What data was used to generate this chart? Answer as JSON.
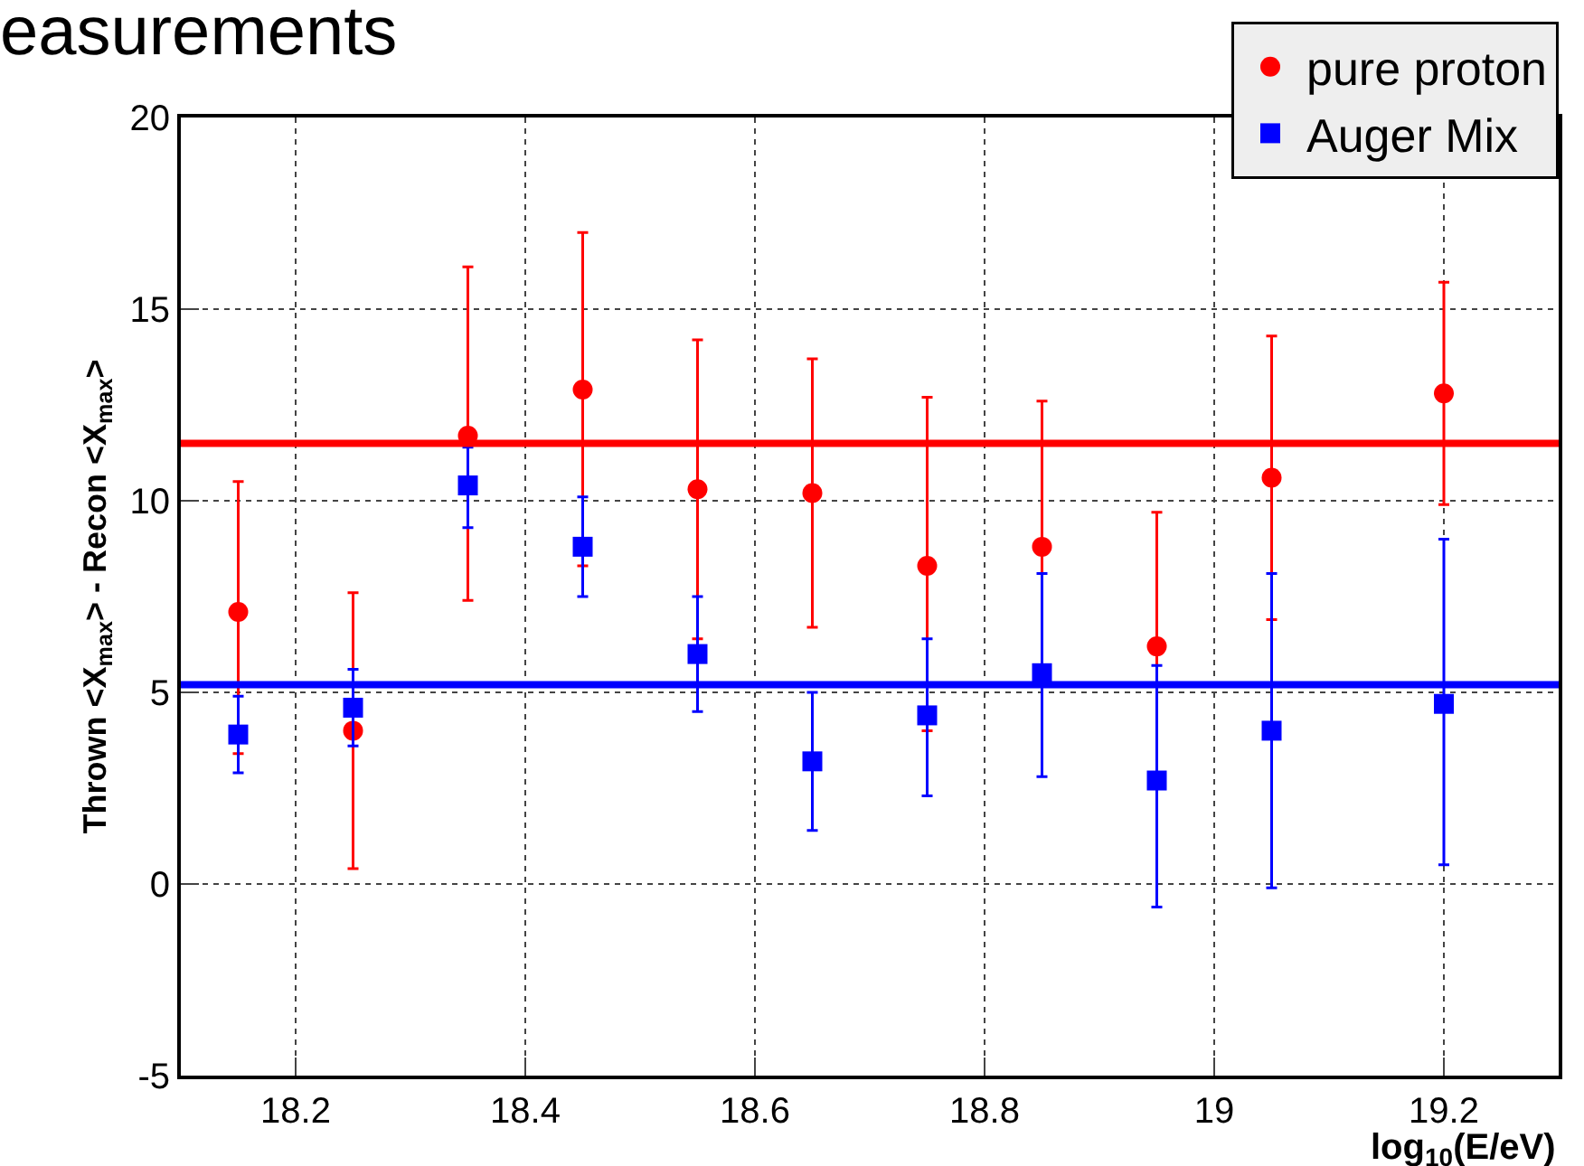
{
  "chart_data": {
    "type": "scatter",
    "title": "easurements",
    "xlabel": "log$_{10}$(E/eV)",
    "ylabel": "Thrown <X$_{max}$> - Recon <X$_{max}$>",
    "x": [
      18.15,
      18.25,
      18.35,
      18.45,
      18.55,
      18.65,
      18.75,
      18.85,
      18.95,
      19.05,
      19.2
    ],
    "series": [
      {
        "name": "pure proton",
        "color": "#ff0000",
        "marker": "circle",
        "values": [
          7.1,
          4.0,
          11.7,
          12.9,
          10.3,
          10.2,
          8.3,
          8.8,
          6.2,
          10.6,
          12.8
        ],
        "errors": [
          [
            3.4,
            10.5
          ],
          [
            0.4,
            7.6
          ],
          [
            7.4,
            16.1
          ],
          [
            8.3,
            17.0
          ],
          [
            6.4,
            14.2
          ],
          [
            6.7,
            13.7
          ],
          [
            4.0,
            12.7
          ],
          [
            5.2,
            12.6
          ],
          [
            2.9,
            9.7
          ],
          [
            6.9,
            14.3
          ],
          [
            9.9,
            15.7
          ]
        ]
      },
      {
        "name": "Auger Mix",
        "color": "#0000ff",
        "marker": "square",
        "values": [
          3.9,
          4.6,
          10.4,
          8.8,
          6.0,
          3.2,
          4.4,
          5.5,
          2.7,
          4.0,
          4.7
        ],
        "errors": [
          [
            2.9,
            4.9
          ],
          [
            3.6,
            5.6
          ],
          [
            9.3,
            11.4
          ],
          [
            7.5,
            10.1
          ],
          [
            4.5,
            7.5
          ],
          [
            1.4,
            5.0
          ],
          [
            2.3,
            6.4
          ],
          [
            2.8,
            8.1
          ],
          [
            -0.6,
            5.7
          ],
          [
            -0.1,
            8.1
          ],
          [
            0.5,
            9.0
          ]
        ]
      }
    ],
    "ref_lines": [
      {
        "axis": "y",
        "value": 11.5,
        "color": "#ff0000"
      },
      {
        "axis": "y",
        "value": 5.2,
        "color": "#0000ff"
      }
    ],
    "xlim": [
      18.1,
      19.3
    ],
    "xticks": [
      18.2,
      18.4,
      18.6,
      18.8,
      19,
      19.2
    ],
    "ylim": [
      -5,
      20
    ],
    "yticks": [
      -5,
      0,
      5,
      10,
      15,
      20
    ],
    "grid": true,
    "legend": "top right"
  }
}
